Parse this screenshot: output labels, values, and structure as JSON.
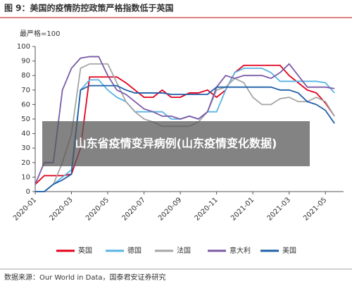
{
  "chart_data": {
    "type": "line",
    "title": "图 9：美国的疫情防控政策严格指数低于英国",
    "ylabel": "最严格=100",
    "source": "数据来源：Our World in Data，国泰君安证券研究",
    "x": [
      0,
      0.5,
      1,
      1.5,
      2,
      2.5,
      3,
      3.5,
      4,
      4.5,
      5,
      5.5,
      6,
      6.5,
      7,
      7.5,
      8,
      8.5,
      9,
      9.5,
      10,
      10.5,
      11,
      11.5,
      12,
      12.5,
      13,
      13.5,
      14,
      14.5,
      15,
      15.5,
      16,
      16.5
    ],
    "xlim": [
      0,
      17
    ],
    "xticks": [
      {
        "value": 0,
        "label": "2020-01"
      },
      {
        "value": 2,
        "label": "2020-03"
      },
      {
        "value": 4,
        "label": "2020-05"
      },
      {
        "value": 6,
        "label": "2020-07"
      },
      {
        "value": 8,
        "label": "2020-09"
      },
      {
        "value": 10,
        "label": "2020-11"
      },
      {
        "value": 12,
        "label": "2021-01"
      },
      {
        "value": 14,
        "label": "2021-03"
      },
      {
        "value": 16,
        "label": "2021-05"
      }
    ],
    "ylim": [
      0,
      100
    ],
    "yticks": [
      0,
      10,
      20,
      30,
      40,
      50,
      60,
      70,
      80,
      90,
      100
    ],
    "series": [
      {
        "name": "英国",
        "color": "#e3001b",
        "values": [
          5,
          11,
          11,
          11,
          12,
          30,
          79,
          79,
          79,
          79,
          75,
          70,
          65,
          65,
          70,
          65,
          65,
          68,
          68,
          70,
          65,
          70,
          82,
          87,
          87,
          87,
          87,
          87,
          80,
          75,
          70,
          68,
          61,
          52
        ]
      },
      {
        "name": "德国",
        "color": "#5bb3e6",
        "values": [
          0,
          0,
          5,
          10,
          15,
          70,
          77,
          77,
          70,
          65,
          62,
          55,
          55,
          55,
          55,
          50,
          50,
          52,
          50,
          55,
          55,
          70,
          82,
          85,
          85,
          85,
          82,
          76,
          76,
          76,
          76,
          76,
          75,
          68
        ]
      },
      {
        "name": "法国",
        "color": "#a5a5a5",
        "values": [
          0,
          0,
          5,
          20,
          40,
          85,
          88,
          88,
          88,
          75,
          62,
          55,
          50,
          48,
          45,
          45,
          45,
          45,
          48,
          55,
          70,
          72,
          78,
          75,
          65,
          60,
          60,
          64,
          65,
          62,
          62,
          65,
          62,
          52
        ]
      },
      {
        "name": "意大利",
        "color": "#7b5aa6",
        "values": [
          5,
          20,
          20,
          70,
          85,
          92,
          93,
          93,
          80,
          70,
          67,
          62,
          57,
          55,
          52,
          52,
          50,
          52,
          50,
          55,
          72,
          80,
          78,
          80,
          80,
          80,
          78,
          82,
          88,
          80,
          72,
          72,
          72,
          71
        ]
      },
      {
        "name": "美国",
        "color": "#1f5fa8",
        "values": [
          0,
          0,
          5,
          8,
          12,
          70,
          73,
          73,
          73,
          73,
          70,
          68,
          68,
          68,
          68,
          67,
          67,
          67,
          67,
          67,
          72,
          72,
          72,
          72,
          72,
          72,
          72,
          70,
          70,
          68,
          62,
          60,
          56,
          47
        ]
      }
    ]
  },
  "banner": "山东省疫情变异病例(山东疫情变化数据)"
}
